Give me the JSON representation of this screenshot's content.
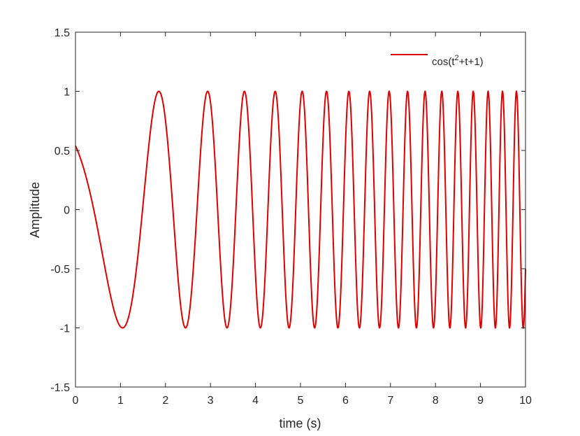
{
  "chart_data": {
    "type": "line",
    "title": "",
    "xlabel": "time (s)",
    "ylabel": "Amplitude",
    "xlim": [
      0,
      10
    ],
    "ylim": [
      -1.5,
      1.5
    ],
    "xticks": [
      0,
      1,
      2,
      3,
      4,
      5,
      6,
      7,
      8,
      9,
      10
    ],
    "yticks": [
      -1.5,
      -1,
      -0.5,
      0,
      0.5,
      1,
      1.5
    ],
    "xtick_labels": [
      "0",
      "1",
      "2",
      "3",
      "4",
      "5",
      "6",
      "7",
      "8",
      "9",
      "10"
    ],
    "ytick_labels": [
      "-1.5",
      "-1",
      "-0.5",
      "0",
      "0.5",
      "1",
      "1.5"
    ],
    "grid": false,
    "legend_position": "top-right",
    "series": [
      {
        "name": "cos(t²+t+1)",
        "legend_base": "cos(t",
        "legend_superscript": "2",
        "legend_rest": "+t+1)",
        "color": "#e00000",
        "function": "cos(t^2+t+1)",
        "x_start": 0,
        "x_end": 10,
        "samples": 4000
      }
    ]
  }
}
